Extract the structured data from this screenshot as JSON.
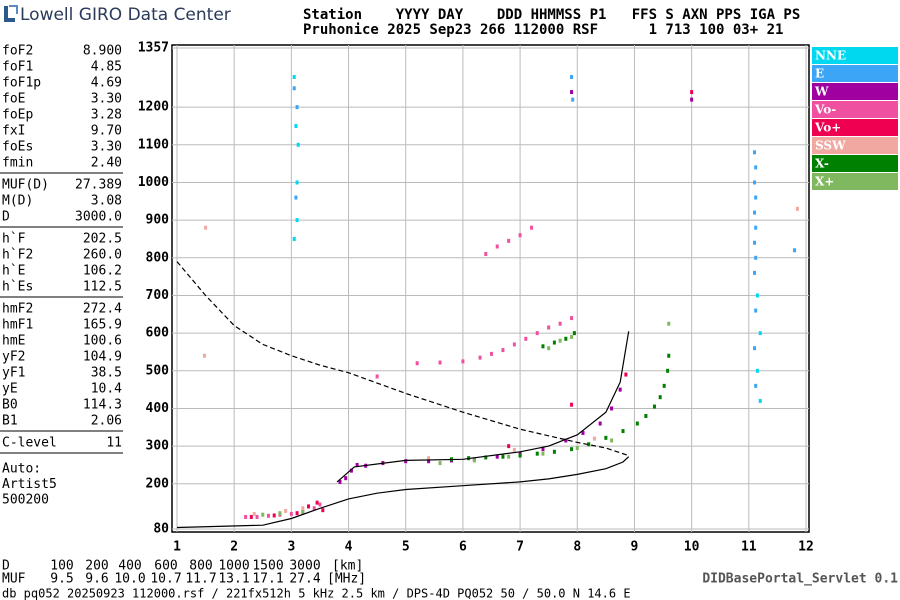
{
  "header": {
    "brand": "Lowell GIRO Data Center",
    "line1": "Station    YYYY DAY    DDD HHMMSS P1   FFS S AXN PPS IGA PS",
    "line2": "Pruhonice 2025 Sep23 266 112000 RSF      1 713 100 03+ 21"
  },
  "params": [
    [
      {
        "label": "foF2",
        "value": "8.900"
      },
      {
        "label": "foF1",
        "value": "4.85"
      },
      {
        "label": "foF1p",
        "value": "4.69"
      },
      {
        "label": "foE",
        "value": "3.30"
      },
      {
        "label": "foEp",
        "value": "3.28"
      },
      {
        "label": "fxI",
        "value": "9.70"
      },
      {
        "label": "foEs",
        "value": "3.30"
      },
      {
        "label": "fmin",
        "value": "2.40"
      }
    ],
    [
      {
        "label": "MUF(D)",
        "value": "27.389"
      },
      {
        "label": "M(D)",
        "value": "3.08"
      },
      {
        "label": "D",
        "value": "3000.0"
      }
    ],
    [
      {
        "label": "h`F",
        "value": "202.5"
      },
      {
        "label": "h`F2",
        "value": "260.0"
      },
      {
        "label": "h`E",
        "value": "106.2"
      },
      {
        "label": "h`Es",
        "value": "112.5"
      }
    ],
    [
      {
        "label": "hmF2",
        "value": "272.4"
      },
      {
        "label": "hmF1",
        "value": "165.9"
      },
      {
        "label": "hmE",
        "value": "100.6"
      },
      {
        "label": "yF2",
        "value": "104.9"
      },
      {
        "label": "yF1",
        "value": "38.5"
      },
      {
        "label": "yE",
        "value": "10.4"
      },
      {
        "label": "B0",
        "value": "114.3"
      },
      {
        "label": "B1",
        "value": "2.06"
      }
    ],
    [
      {
        "label": "C-level",
        "value": "11"
      }
    ]
  ],
  "auto": [
    "Auto:",
    "Artist5",
    "500200"
  ],
  "bottom": {
    "d_label": "D",
    "d_values": [
      "100",
      "200",
      "400",
      "600",
      "800",
      "1000",
      "1500",
      "3000"
    ],
    "d_unit": "[km]",
    "muf_label": "MUF",
    "muf_values": [
      "9.5",
      "9.6",
      "10.0",
      "10.7",
      "11.7",
      "13.1",
      "17.1",
      "27.4"
    ],
    "muf_unit": "[MHz]",
    "servlet": "DIDBasePortal_Servlet 0.1",
    "footer": "db pq052 20250923 112000.rsf / 221fx512h 5 kHz 2.5 km / DPS-4D PQ052 50 / 50.0 N 14.6 E"
  },
  "chart_data": {
    "type": "scatter",
    "xlim": [
      1,
      12
    ],
    "xticks": [
      1,
      2,
      3,
      4,
      5,
      6,
      7,
      8,
      9,
      10,
      11,
      12
    ],
    "ylim": [
      80,
      1357
    ],
    "yticks": [
      80,
      200,
      300,
      400,
      500,
      600,
      700,
      800,
      900,
      1000,
      1100,
      1200,
      1357
    ],
    "grid": true,
    "series": [
      {
        "name": "NNE",
        "color": "#00d8f0",
        "x": [
          3.05,
          3.08,
          3.1,
          3.1,
          3.05,
          3.12,
          11.15,
          11.2,
          11.15,
          11.2
        ],
        "y": [
          1280,
          1150,
          1000,
          900,
          850,
          1100,
          700,
          600,
          500,
          420
        ]
      },
      {
        "name": "E",
        "color": "#3da5f5",
        "x": [
          3.05,
          3.1,
          3.08,
          7.9,
          7.92,
          11.1,
          11.12,
          11.1,
          11.12,
          11.1,
          11.12,
          11.1,
          11.12,
          11.1,
          11.12,
          11.1,
          11.12,
          11.8
        ],
        "y": [
          1250,
          1200,
          960,
          1280,
          1220,
          1080,
          1040,
          1000,
          960,
          920,
          880,
          840,
          800,
          760,
          660,
          560,
          460,
          820
        ]
      },
      {
        "name": "W",
        "color": "#a000a0",
        "x": [
          3.85,
          3.95,
          4.05,
          4.15,
          4.3,
          4.6,
          5.0,
          5.4,
          5.8,
          6.2,
          6.6,
          7.0,
          7.4,
          7.8,
          8.1,
          8.4,
          8.6,
          8.75,
          7.9,
          10.0
        ],
        "y": [
          205,
          215,
          235,
          250,
          248,
          255,
          260,
          260,
          262,
          265,
          272,
          280,
          292,
          315,
          335,
          360,
          400,
          450,
          1240,
          1220
        ]
      },
      {
        "name": "Vo-",
        "color": "#f050a0",
        "x": [
          2.2,
          2.4,
          2.6,
          2.8,
          3.0,
          3.2,
          3.4,
          3.5,
          4.5,
          5.2,
          5.6,
          6.0,
          6.3,
          6.5,
          6.7,
          6.9,
          7.1,
          7.3,
          7.5,
          7.7,
          7.9,
          6.4,
          6.6,
          6.8,
          7.0,
          7.2
        ],
        "y": [
          112,
          112,
          115,
          118,
          120,
          125,
          135,
          145,
          485,
          520,
          522,
          525,
          535,
          545,
          555,
          570,
          585,
          600,
          615,
          625,
          640,
          810,
          830,
          845,
          860,
          880
        ]
      },
      {
        "name": "Vo+",
        "color": "#f00050",
        "x": [
          2.3,
          2.7,
          3.1,
          3.3,
          3.45,
          3.55,
          6.8,
          7.9,
          8.85,
          10.0
        ],
        "y": [
          112,
          116,
          122,
          140,
          150,
          130,
          300,
          410,
          490,
          1240
        ]
      },
      {
        "name": "SSW",
        "color": "#f0a8a0",
        "x": [
          1.5,
          2.35,
          2.9,
          3.2,
          5.4,
          6.9,
          8.3,
          11.85,
          1.48
        ],
        "y": [
          880,
          120,
          128,
          135,
          268,
          290,
          320,
          930,
          540
        ]
      },
      {
        "name": "X-",
        "color": "#008000",
        "x": [
          5.8,
          6.1,
          6.4,
          6.7,
          7.0,
          7.3,
          7.6,
          7.9,
          8.2,
          8.5,
          8.8,
          9.05,
          9.2,
          9.35,
          9.45,
          9.52,
          9.58,
          9.6,
          7.4,
          7.6,
          7.8,
          7.95
        ],
        "y": [
          265,
          268,
          270,
          272,
          275,
          280,
          285,
          292,
          305,
          322,
          340,
          360,
          380,
          405,
          430,
          460,
          500,
          540,
          565,
          575,
          585,
          600
        ]
      },
      {
        "name": "X+",
        "color": "#80b860",
        "x": [
          2.5,
          2.8,
          3.2,
          5.6,
          6.2,
          6.8,
          7.4,
          8.0,
          8.6,
          7.5,
          7.7,
          7.9,
          9.6
        ],
        "y": [
          118,
          122,
          125,
          255,
          262,
          272,
          280,
          295,
          315,
          560,
          580,
          590,
          625
        ]
      }
    ],
    "profile": {
      "x": [
        1,
        2.5,
        3,
        3.5,
        4,
        4.5,
        5,
        6,
        7,
        7.5,
        8,
        8.5,
        8.8,
        8.9
      ],
      "y": [
        84,
        90,
        108,
        135,
        160,
        175,
        185,
        195,
        205,
        213,
        225,
        240,
        258,
        272
      ]
    },
    "trace_fit": {
      "x": [
        3.8,
        4.1,
        5,
        6,
        7,
        7.5,
        8,
        8.5,
        8.75,
        8.9
      ],
      "y": [
        205,
        245,
        262,
        265,
        285,
        300,
        330,
        390,
        470,
        605
      ]
    },
    "muf_curve": {
      "x": [
        1,
        1.5,
        2,
        2.5,
        3,
        3.5,
        4,
        5,
        6,
        7,
        8,
        8.5,
        8.9
      ],
      "y": [
        790,
        700,
        620,
        570,
        540,
        515,
        495,
        440,
        390,
        345,
        310,
        295,
        275
      ]
    }
  }
}
